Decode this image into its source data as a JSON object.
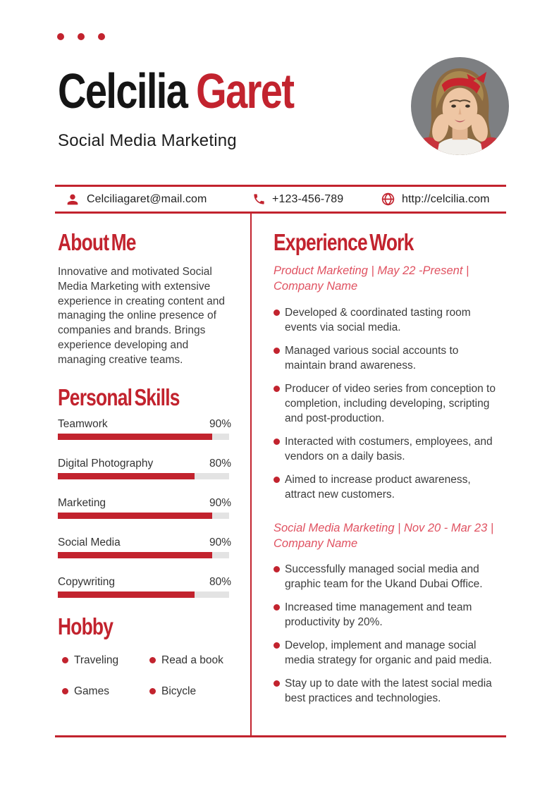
{
  "colors": {
    "accent": "#c2232e",
    "job_title": "#e05261",
    "body_text": "#3c3c3c",
    "name_text": "#151515",
    "bar_track": "#e3e3e3",
    "avatar_bg": "#7d7f82"
  },
  "header": {
    "first_name": "Celcilia",
    "last_name": "Garet",
    "subtitle": "Social Media Marketing"
  },
  "contact": {
    "email": "Celciliagaret@mail.com",
    "email_icon": "person-icon",
    "phone": "+123-456-789",
    "phone_icon": "phone-icon",
    "website": "http://celcilia.com",
    "website_icon": "globe-icon"
  },
  "about": {
    "heading": "About Me",
    "text": "Innovative and motivated Social Media Marketing with extensive experience in creating content and managing the online presence of companies and brands. Brings experience developing and managing creative teams."
  },
  "skills": {
    "heading": "Personal Skills",
    "items": [
      {
        "label": "Teamwork",
        "percent": 90,
        "percent_label": "90%"
      },
      {
        "label": "Digital Photography",
        "percent": 80,
        "percent_label": "80%"
      },
      {
        "label": "Marketing",
        "percent": 90,
        "percent_label": "90%"
      },
      {
        "label": "Social Media",
        "percent": 90,
        "percent_label": "90%"
      },
      {
        "label": "Copywriting",
        "percent": 80,
        "percent_label": "80%"
      }
    ]
  },
  "hobby": {
    "heading": "Hobby",
    "items": [
      "Traveling",
      "Read a book",
      "Games",
      "Bicycle"
    ]
  },
  "experience": {
    "heading": "Experience Work",
    "jobs": [
      {
        "header_line1": "Product Marketing | May 22 -Present |",
        "header_line2": "Company Name",
        "bullets": [
          "Developed & coordinated tasting room events via social media.",
          "Managed various social accounts to maintain brand awareness.",
          "Producer of video series from conception to completion, including developing, scripting and post-production.",
          "Interacted with costumers, employees, and vendors on a daily basis.",
          "Aimed to increase product awareness, attract new customers."
        ]
      },
      {
        "header_line1": "Social Media Marketing | Nov 20 - Mar 23 |",
        "header_line2": "Company Name",
        "bullets": [
          "Successfully managed social media and graphic team for the Ukand Dubai Office.",
          "Increased time management and team productivity by 20%.",
          "Develop, implement and manage social media strategy for organic and paid media.",
          "Stay up to date with the latest social media best practices and technologies."
        ]
      }
    ]
  }
}
